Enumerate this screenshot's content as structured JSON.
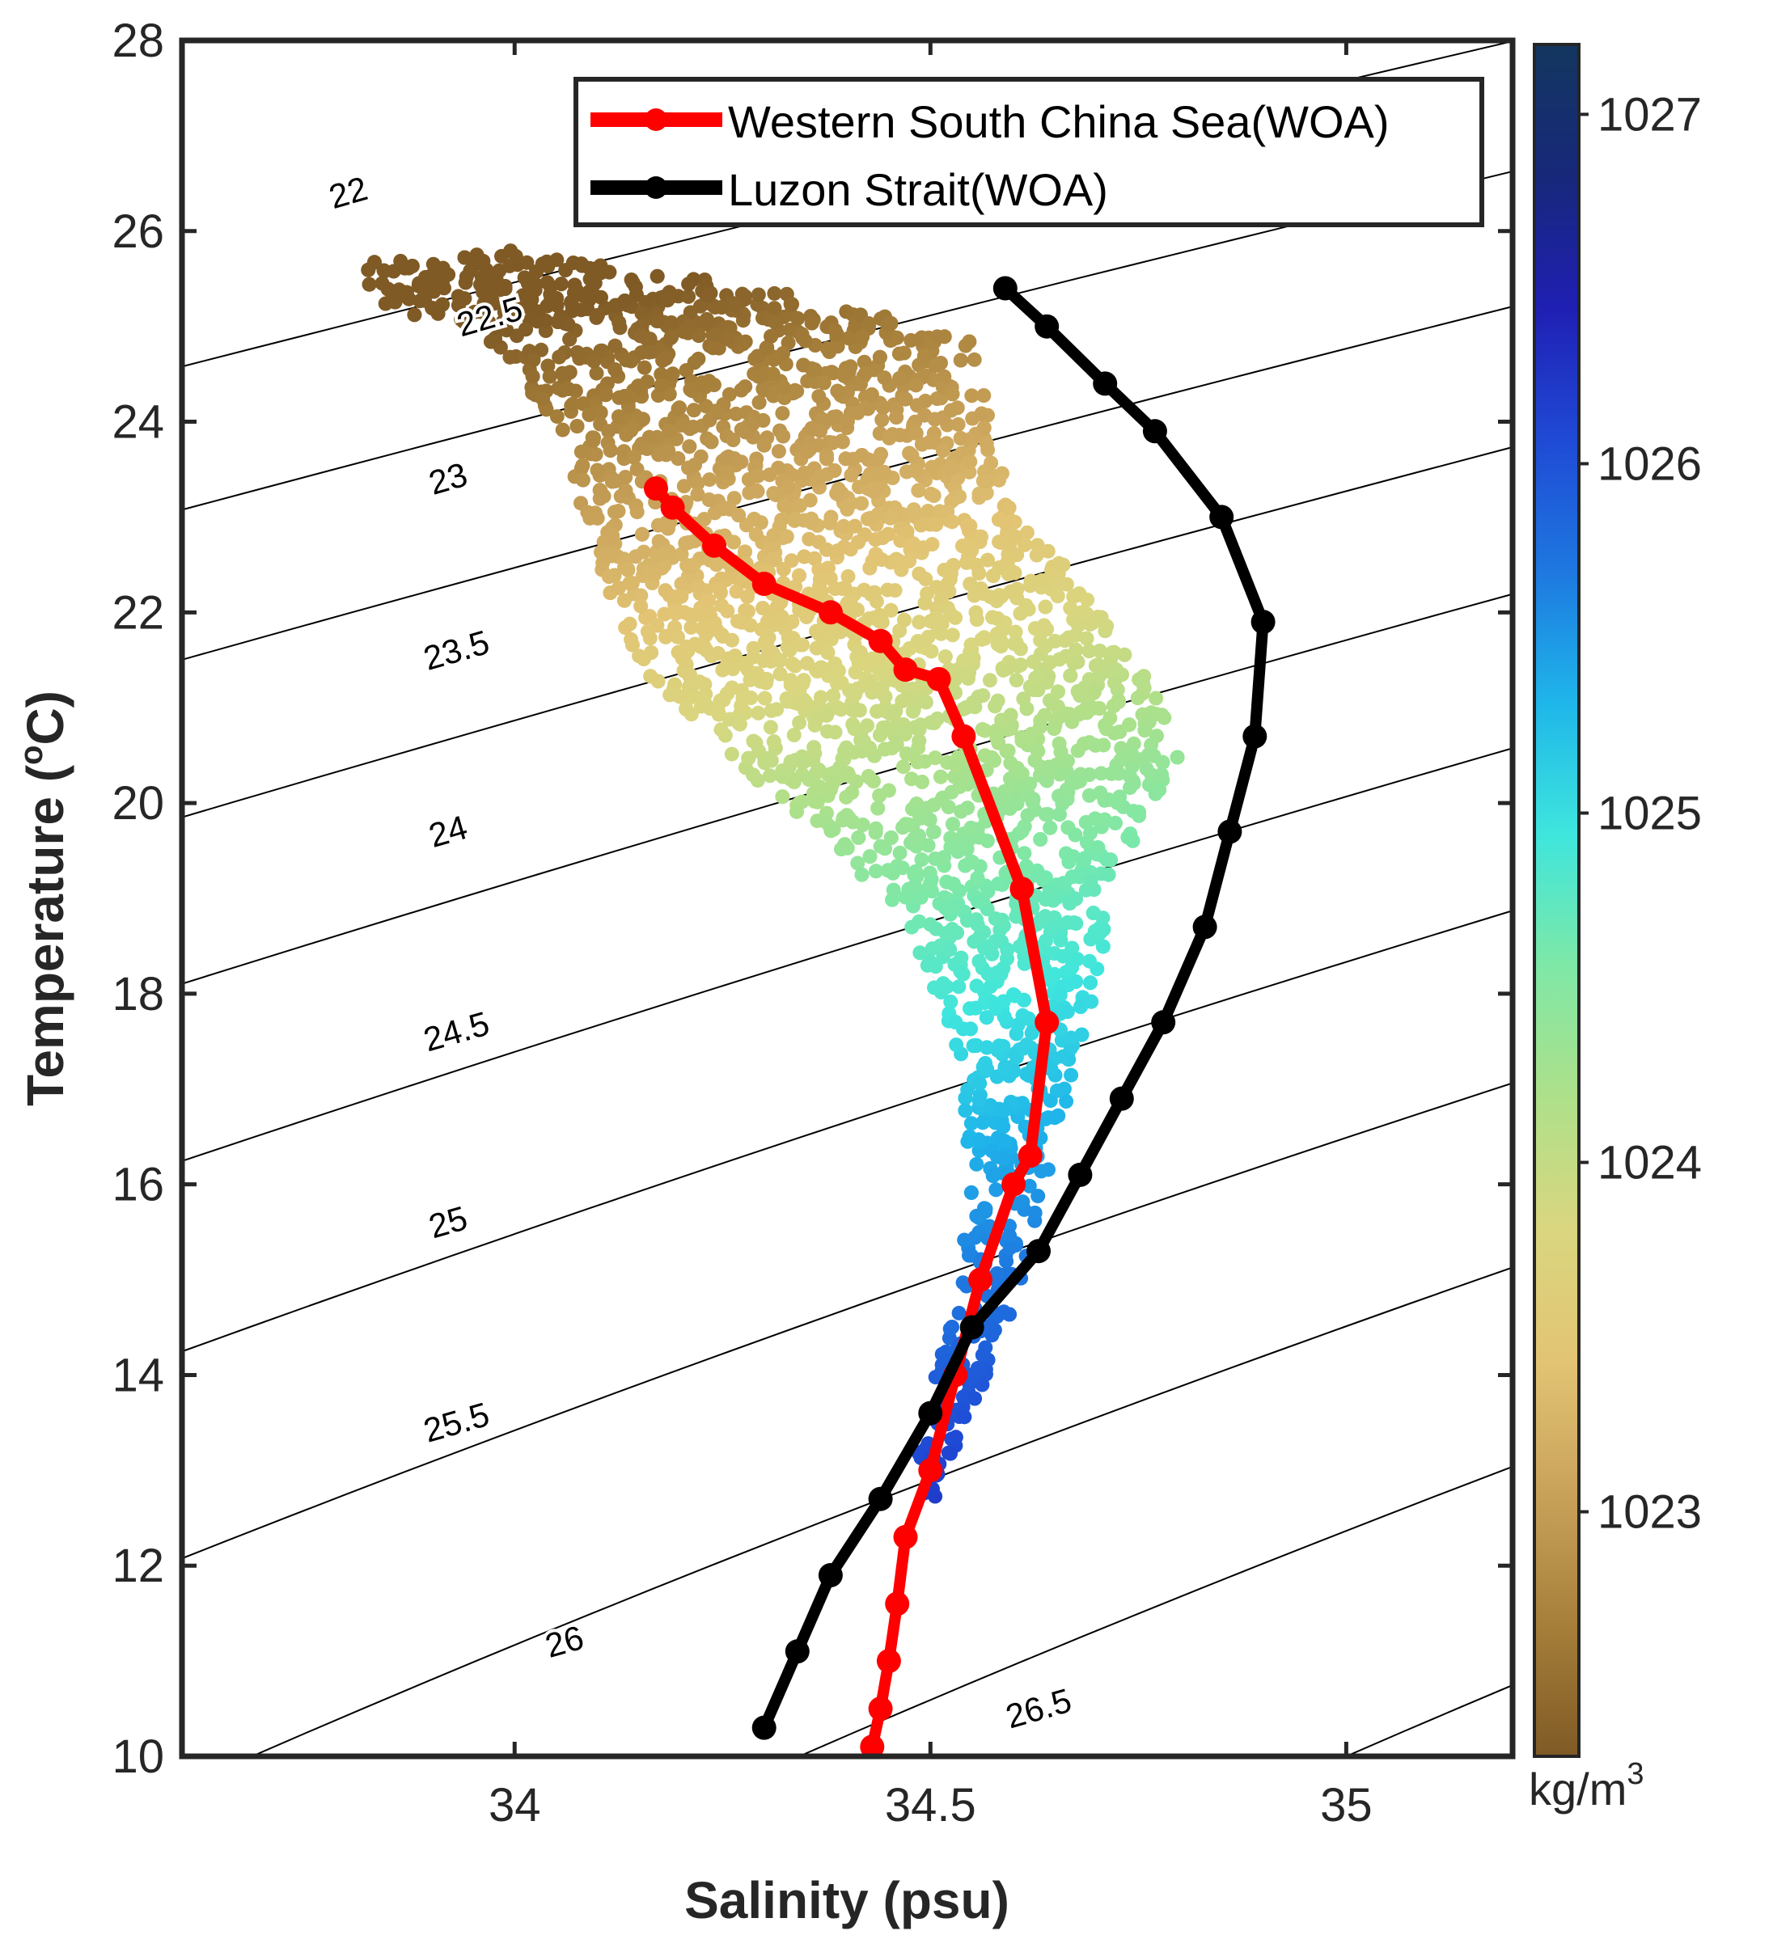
{
  "chart_data": {
    "type": "scatter",
    "title": "",
    "xlabel": "Salinity (psu)",
    "ylabel": "Temperature (°C)",
    "ylabel_prefix": "Temperature (",
    "ylabel_degree": "o",
    "ylabel_suffix": "C)",
    "xlim": [
      33.6,
      35.2
    ],
    "ylim": [
      10,
      28
    ],
    "xticks": [
      34,
      34.5,
      35
    ],
    "xtick_labels": [
      "34",
      "34.5",
      "35"
    ],
    "yticks": [
      10,
      12,
      14,
      16,
      18,
      20,
      22,
      24,
      26,
      28
    ],
    "ytick_labels": [
      "10",
      "12",
      "14",
      "16",
      "18",
      "20",
      "22",
      "24",
      "26",
      "28"
    ],
    "grid": false,
    "legend_position": "top-right",
    "series": [
      {
        "name": "Western South China Sea(WOA)",
        "color": "#ff0000",
        "points": [
          [
            34.43,
            10.1
          ],
          [
            34.44,
            10.5
          ],
          [
            34.45,
            11.0
          ],
          [
            34.46,
            11.6
          ],
          [
            34.47,
            12.3
          ],
          [
            34.5,
            13.0
          ],
          [
            34.53,
            14.0
          ],
          [
            34.56,
            15.0
          ],
          [
            34.6,
            16.0
          ],
          [
            34.62,
            16.3
          ],
          [
            34.64,
            17.7
          ],
          [
            34.61,
            19.1
          ],
          [
            34.54,
            20.7
          ],
          [
            34.51,
            21.3
          ],
          [
            34.47,
            21.4
          ],
          [
            34.44,
            21.7
          ],
          [
            34.38,
            22.0
          ],
          [
            34.3,
            22.3
          ],
          [
            34.24,
            22.7
          ],
          [
            34.19,
            23.1
          ],
          [
            34.17,
            23.3
          ]
        ]
      },
      {
        "name": "Luzon Strait(WOA)",
        "color": "#000000",
        "points": [
          [
            34.3,
            10.3
          ],
          [
            34.34,
            11.1
          ],
          [
            34.38,
            11.9
          ],
          [
            34.44,
            12.7
          ],
          [
            34.5,
            13.6
          ],
          [
            34.55,
            14.5
          ],
          [
            34.63,
            15.3
          ],
          [
            34.68,
            16.1
          ],
          [
            34.73,
            16.9
          ],
          [
            34.78,
            17.7
          ],
          [
            34.83,
            18.7
          ],
          [
            34.86,
            19.7
          ],
          [
            34.89,
            20.7
          ],
          [
            34.9,
            21.9
          ],
          [
            34.85,
            23.0
          ],
          [
            34.77,
            23.9
          ],
          [
            34.71,
            24.4
          ],
          [
            34.64,
            25.0
          ],
          [
            34.59,
            25.4
          ]
        ]
      }
    ],
    "scatter_cloud": {
      "description_source": "observed profiles colored by density",
      "envelope_polygon": [
        [
          33.82,
          25.7
        ],
        [
          34.0,
          25.8
        ],
        [
          34.3,
          25.4
        ],
        [
          34.55,
          24.9
        ],
        [
          34.6,
          23.0
        ],
        [
          34.66,
          22.5
        ],
        [
          34.77,
          21.2
        ],
        [
          34.8,
          20.5
        ],
        [
          34.72,
          19.2
        ],
        [
          34.7,
          18.0
        ],
        [
          34.66,
          16.5
        ],
        [
          34.62,
          15.3
        ],
        [
          34.58,
          14.2
        ],
        [
          34.52,
          13.0
        ],
        [
          34.5,
          12.5
        ],
        [
          34.48,
          13.0
        ],
        [
          34.52,
          14.5
        ],
        [
          34.55,
          16.0
        ],
        [
          34.53,
          17.5
        ],
        [
          34.47,
          18.8
        ],
        [
          34.35,
          19.8
        ],
        [
          34.2,
          20.8
        ],
        [
          34.13,
          21.8
        ],
        [
          34.08,
          23.0
        ],
        [
          34.05,
          24.0
        ],
        [
          33.95,
          25.0
        ],
        [
          33.83,
          25.2
        ]
      ],
      "min_salinity": 33.82,
      "max_salinity": 34.8,
      "min_temperature": 12.5,
      "max_temperature": 25.8
    },
    "isopycnals": [
      {
        "label": "22",
        "sigma": 22.0,
        "label_x": 33.8,
        "label_y": 26.4
      },
      {
        "label": "22.5",
        "sigma": 22.5,
        "label_x": 33.97,
        "label_y": 25.1
      },
      {
        "label": "23",
        "sigma": 23.0,
        "label_x": 33.92,
        "label_y": 23.4
      },
      {
        "label": "23.5",
        "sigma": 23.5,
        "label_x": 33.93,
        "label_y": 21.6
      },
      {
        "label": "24",
        "sigma": 24.0,
        "label_x": 33.92,
        "label_y": 19.7
      },
      {
        "label": "24.5",
        "sigma": 24.5,
        "label_x": 33.93,
        "label_y": 17.6
      },
      {
        "label": "25",
        "sigma": 25.0,
        "label_x": 33.92,
        "label_y": 15.6
      },
      {
        "label": "25.5",
        "sigma": 25.5,
        "label_x": 33.93,
        "label_y": 13.5
      },
      {
        "label": "26",
        "sigma": 26.0,
        "label_x": 34.06,
        "label_y": 11.2
      },
      {
        "label": "26.5",
        "sigma": 26.5,
        "label_x": 34.63,
        "label_y": 10.5
      },
      {
        "label": "",
        "sigma": 27.0,
        "label_x": null,
        "label_y": null
      }
    ],
    "colorbar": {
      "label": "kg/m",
      "label_superscript": "3",
      "range": [
        1022.3,
        1027.2
      ],
      "ticks": [
        1023,
        1024,
        1025,
        1026,
        1027
      ],
      "tick_labels": [
        "1023",
        "1024",
        "1025",
        "1026",
        "1027"
      ],
      "colormap": [
        "#7f5a25",
        "#a67f3a",
        "#c9a25a",
        "#e2c474",
        "#dad67f",
        "#aee08a",
        "#7ee8a6",
        "#3fe6dd",
        "#1fb6ea",
        "#1e78e0",
        "#1f4ad5",
        "#1f1fb3",
        "#17287a",
        "#13365f"
      ]
    }
  }
}
